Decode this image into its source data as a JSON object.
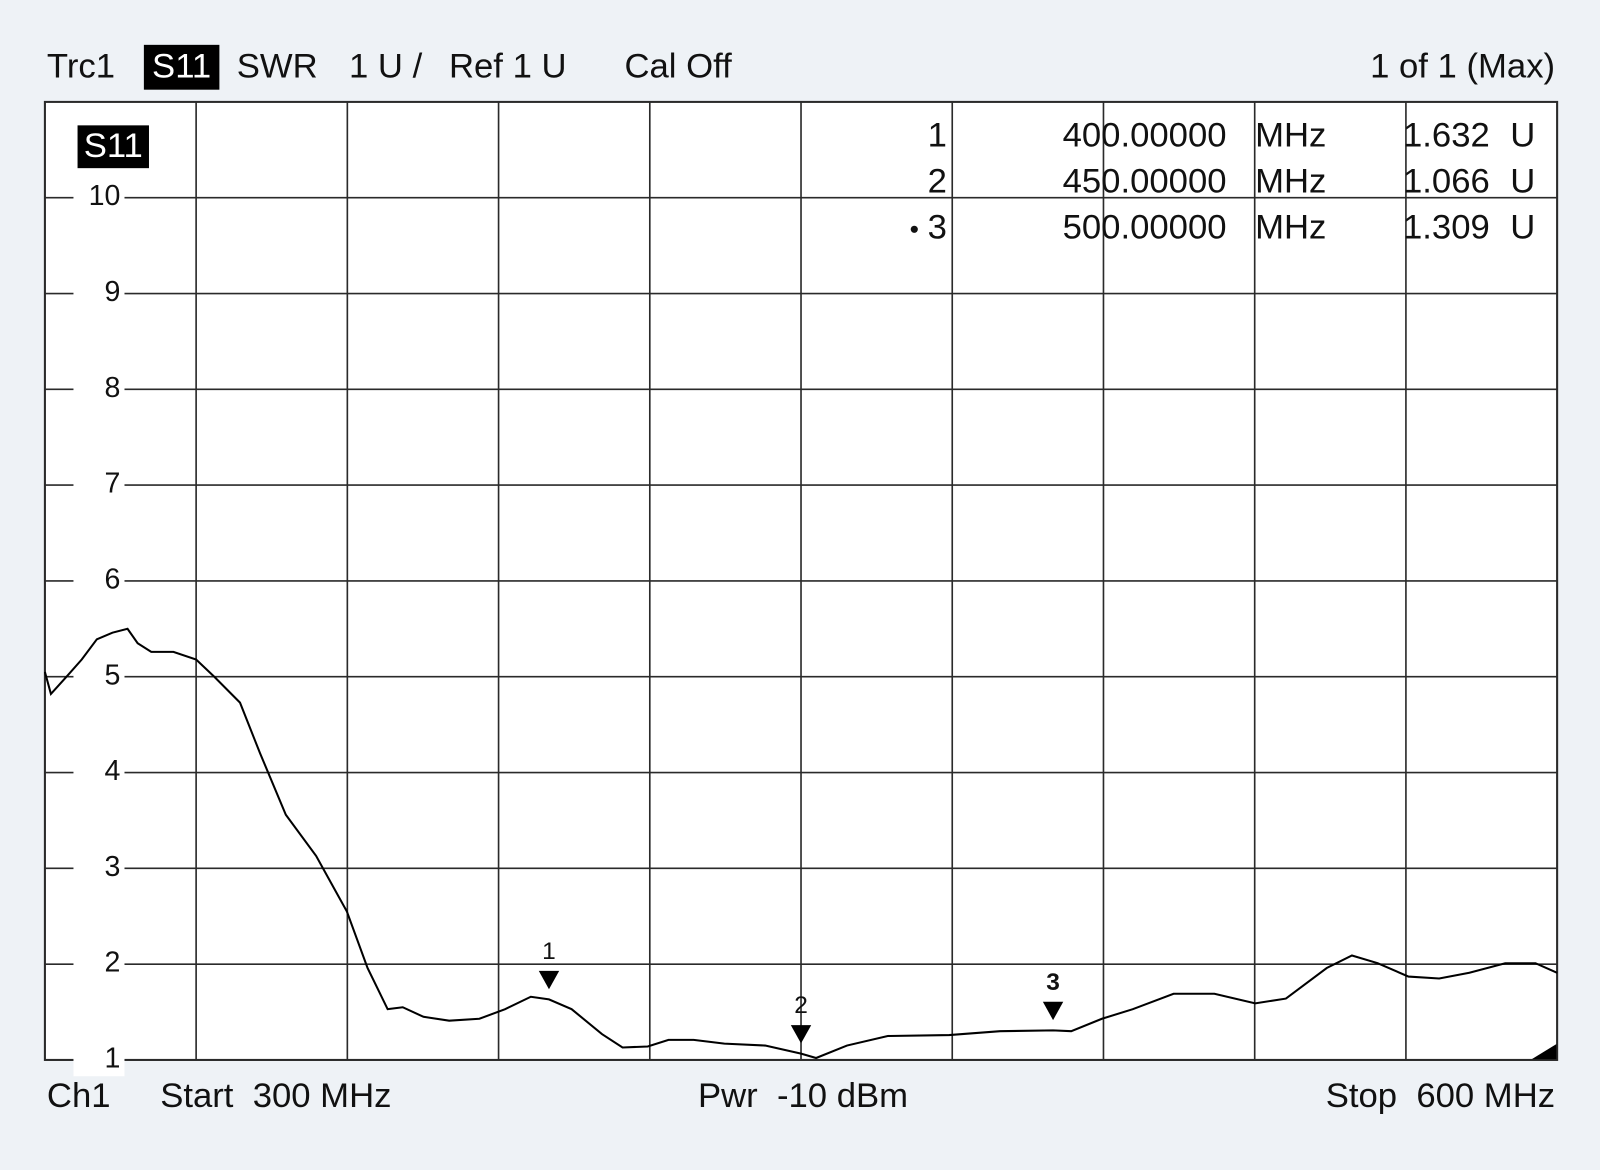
{
  "header": {
    "trace": "Trc1",
    "param": "S11",
    "format": "SWR",
    "scale": "1 U /",
    "ref": "Ref 1 U",
    "cal": "Cal Off",
    "window": "1 of 1 (Max)"
  },
  "footer": {
    "channel": "Ch1",
    "start": "Start  300 MHz",
    "power": "Pwr  -10 dBm",
    "stop": "Stop  600 MHz"
  },
  "chart_data": {
    "type": "line",
    "x": [
      300,
      301.2,
      304.3,
      307.3,
      310.3,
      313.4,
      316.4,
      318.4,
      321.1,
      325.5,
      330,
      333.6,
      338.7,
      342.7,
      347.8,
      353.8,
      359.9,
      364,
      368,
      371,
      375.1,
      380.2,
      386.2,
      391.3,
      396.4,
      400,
      404.5,
      410.5,
      414.6,
      419.6,
      423.7,
      428.7,
      434.8,
      442.9,
      450,
      453,
      459.1,
      467.2,
      479.4,
      489.5,
      500,
      503.6,
      509.7,
      515.8,
      523.9,
      532,
      540.1,
      546.2,
      554.3,
      559.3,
      564.4,
      570.5,
      576.6,
      582.6,
      589.7,
      595.7,
      600
    ],
    "series": [
      {
        "name": "S11",
        "color": "#000000",
        "values": [
          5.05,
          4.82,
          5.0,
          5.18,
          5.39,
          5.46,
          5.5,
          5.35,
          5.26,
          5.26,
          5.18,
          5.0,
          4.73,
          4.2,
          3.56,
          3.13,
          2.55,
          1.96,
          1.53,
          1.55,
          1.45,
          1.41,
          1.43,
          1.53,
          1.66,
          1.632,
          1.53,
          1.27,
          1.13,
          1.14,
          1.21,
          1.21,
          1.17,
          1.15,
          1.066,
          1.02,
          1.15,
          1.25,
          1.26,
          1.3,
          1.309,
          1.3,
          1.43,
          1.53,
          1.69,
          1.69,
          1.59,
          1.64,
          1.96,
          2.09,
          2.01,
          1.87,
          1.85,
          1.91,
          2.01,
          2.01,
          1.91
        ]
      }
    ],
    "xlim": [
      300,
      600
    ],
    "xticks": [
      300,
      330,
      360,
      390,
      420,
      450,
      480,
      510,
      540,
      570,
      600
    ],
    "ylim": [
      1,
      11
    ],
    "yticks": [
      1,
      2,
      3,
      4,
      5,
      6,
      7,
      8,
      9,
      10
    ],
    "grid": true,
    "markers": [
      {
        "name": "1",
        "x": {
          "value": 400,
          "label": "400.00000"
        },
        "x_unit": "MHz",
        "value": 1.632,
        "unit": "U",
        "active": false
      },
      {
        "name": "2",
        "x": {
          "value": 450,
          "label": "450.00000"
        },
        "x_unit": "MHz",
        "value": 1.066,
        "unit": "U",
        "active": false
      },
      {
        "name": "3",
        "x": {
          "value": 500,
          "label": "500.00000"
        },
        "x_unit": "MHz",
        "value": 1.309,
        "unit": "U",
        "active": true
      }
    ]
  }
}
